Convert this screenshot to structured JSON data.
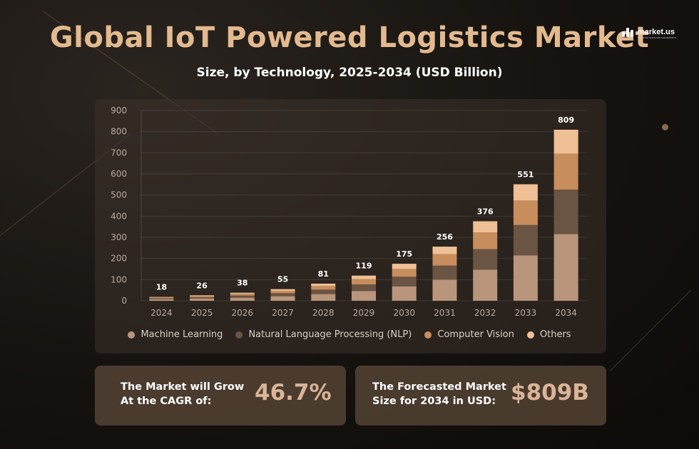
{
  "header": {
    "title": "Global IoT Powered Logistics Market",
    "subtitle": "Size, by Technology, 2025-2034 (USD Billion)"
  },
  "logo": {
    "name": "market.us",
    "tagline": "ONE STOP SHOP FOR THE REPORTS"
  },
  "chart_data": {
    "type": "bar",
    "stacked": true,
    "title": "Global IoT Powered Logistics Market",
    "subtitle": "Size, by Technology, 2025-2034 (USD Billion)",
    "categories": [
      "2024",
      "2025",
      "2026",
      "2027",
      "2028",
      "2029",
      "2030",
      "2031",
      "2032",
      "2033",
      "2034"
    ],
    "totals": [
      18,
      26,
      38,
      55,
      81,
      119,
      175,
      256,
      376,
      551,
      809
    ],
    "series": [
      {
        "name": "Machine Learning",
        "color": "#b9957c",
        "values": [
          7,
          10.1,
          14.8,
          21.5,
          31.6,
          46.4,
          68.2,
          99.8,
          146.6,
          215,
          315.5
        ]
      },
      {
        "name": "Natural Language Processing (NLP)",
        "color": "#6a5444",
        "values": [
          4.7,
          6.8,
          9.9,
          14.3,
          21.1,
          30.9,
          45.5,
          66.6,
          97.8,
          143.3,
          210.3
        ]
      },
      {
        "name": "Computer Vision",
        "color": "#c88d5c",
        "values": [
          3.8,
          5.5,
          8,
          11.5,
          17,
          25,
          36.8,
          53.8,
          79,
          115.7,
          169.9
        ]
      },
      {
        "name": "Others",
        "color": "#efc095",
        "values": [
          2.5,
          3.6,
          5.3,
          7.7,
          11.3,
          16.7,
          24.5,
          35.8,
          52.6,
          77,
          113.3
        ]
      }
    ],
    "yticks": [
      0,
      100,
      200,
      300,
      400,
      500,
      600,
      700,
      800,
      900
    ],
    "ylim": [
      0,
      900
    ],
    "grid": true,
    "legend": "bottom"
  },
  "stats": {
    "cagr_label": [
      "The Market will Grow",
      "At the CAGR of:"
    ],
    "cagr_value": "46.7%",
    "forecast_label": [
      "The Forecasted Market",
      "Size for 2034 in USD:"
    ],
    "forecast_value": "$809B"
  }
}
